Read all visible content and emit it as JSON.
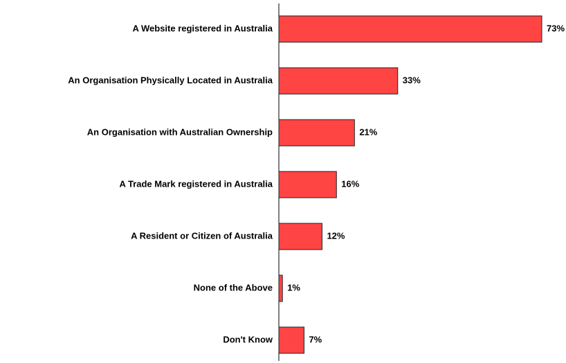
{
  "chart_data": {
    "type": "barh",
    "categories": [
      "A Website registered in Australia",
      "An Organisation Physically Located in Australia",
      "An Organisation with Australian Ownership",
      "A Trade Mark registered in Australia",
      "A Resident or Citizen of Australia",
      "None of the Above",
      "Don't Know"
    ],
    "values": [
      73,
      33,
      21,
      16,
      12,
      1,
      7
    ],
    "value_labels": [
      "73%",
      "33%",
      "21%",
      "16%",
      "12%",
      "1%",
      "7%"
    ],
    "color": "#ff4444"
  }
}
